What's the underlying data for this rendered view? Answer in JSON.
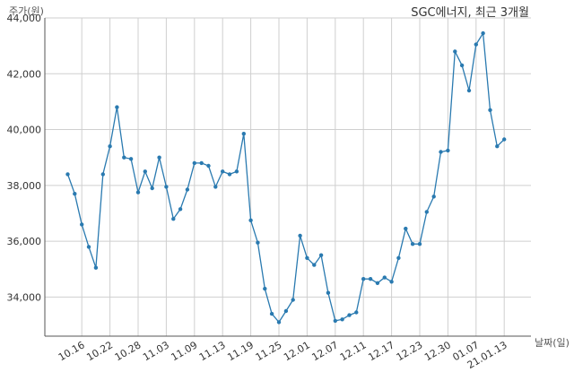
{
  "chart_data": {
    "type": "line",
    "title": "SGC에너지, 최근 3개월",
    "ylabel": "주가(원)",
    "xlabel": "날짜(일)",
    "ylim": [
      32600,
      44000
    ],
    "yticks": [
      34000,
      36000,
      38000,
      40000,
      42000,
      44000
    ],
    "ytick_labels": [
      "34,000",
      "36,000",
      "38,000",
      "40,000",
      "42,000",
      "44,000"
    ],
    "xtick_labels": [
      "10.16",
      "10.22",
      "10.28",
      "11.03",
      "11.09",
      "11.13",
      "11.19",
      "11.25",
      "12.01",
      "12.07",
      "12.11",
      "12.17",
      "12.23",
      "12.30",
      "01.07",
      "21.01.13"
    ],
    "xtick_index": [
      2,
      6,
      10,
      14,
      18,
      22,
      26,
      30,
      34,
      38,
      42,
      46,
      50,
      54,
      58,
      62
    ],
    "grid": true,
    "line_color": "#2a7ab0",
    "series": [
      {
        "name": "",
        "values": [
          38400,
          37700,
          36600,
          35800,
          35050,
          38400,
          39400,
          40800,
          39000,
          38950,
          37750,
          38500,
          37900,
          39000,
          37950,
          36800,
          37150,
          37850,
          38800,
          38800,
          38700,
          37950,
          38500,
          38400,
          38500,
          39850,
          36750,
          35950,
          34300,
          33400,
          33100,
          33500,
          33900,
          36200,
          35400,
          35150,
          35500,
          34150,
          33150,
          33200,
          33350,
          33450,
          34650,
          34650,
          34500,
          34700,
          34550,
          35400,
          36450,
          35900,
          35900,
          37050,
          37600,
          39200,
          39250,
          42800,
          42300,
          41400,
          43050,
          43450,
          40700,
          39400,
          39650
        ]
      }
    ]
  }
}
